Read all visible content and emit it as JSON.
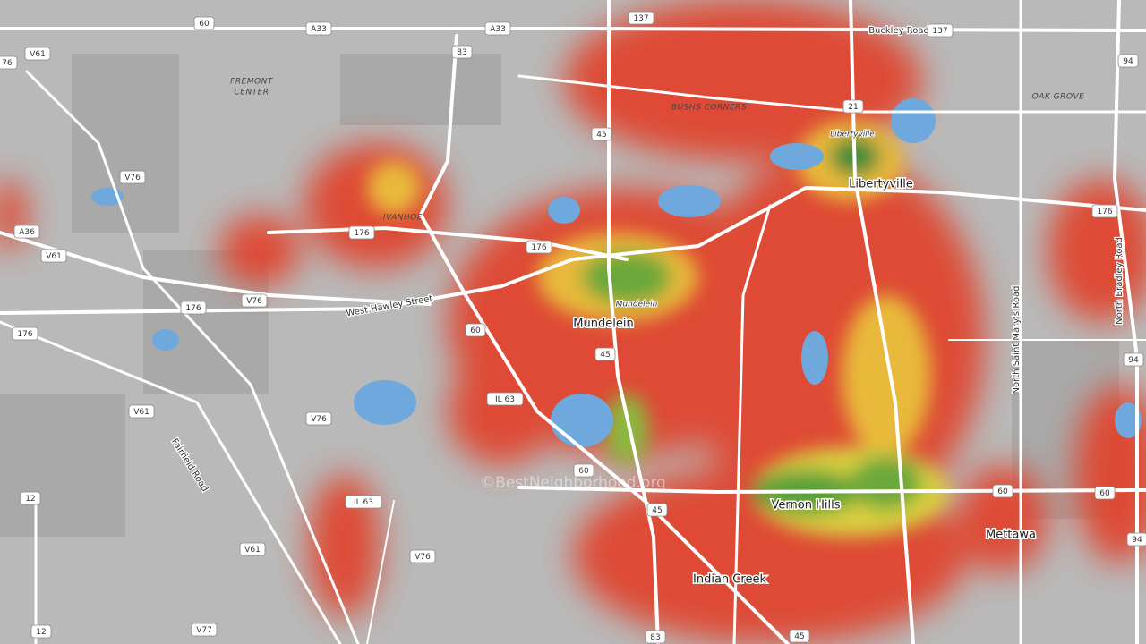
{
  "map": {
    "places": [
      "FREMONT",
      "CENTER",
      "BUSHS CORNERS",
      "OAK GROVE",
      "IVANHOE"
    ],
    "towns": [
      "Libertyville",
      "Mundelein",
      "Vernon Hills",
      "Mettawa",
      "Indian Creek"
    ],
    "districts": [
      "Libertyville",
      "Mundelein"
    ],
    "streets": [
      "Buckley Road",
      "West Hawley Street",
      "Fairfield Road",
      "North Saint Mary's Road",
      "North Bradley Road"
    ],
    "shields": [
      "V61",
      "60",
      "A33",
      "83",
      "A33",
      "137",
      "137",
      "76",
      "V76",
      "21",
      "A36",
      "V61",
      "176",
      "176",
      "176",
      "V76",
      "176",
      "176",
      "60",
      "45",
      "45",
      "IL 63",
      "V61",
      "V76",
      "60",
      "45",
      "IL 63",
      "12",
      "V61",
      "V76",
      "60",
      "60",
      "94",
      "94",
      "94",
      "V77",
      "83",
      "45",
      "12"
    ],
    "watermark": "©BestNeighborhood.org"
  }
}
